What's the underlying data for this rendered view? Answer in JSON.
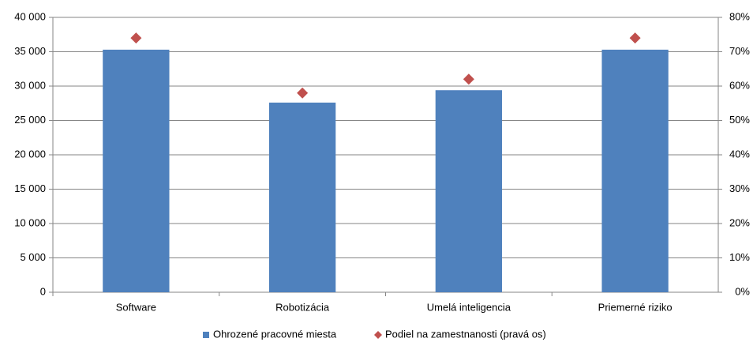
{
  "chart_data": {
    "type": "bar",
    "categories": [
      "Software",
      "Robotizácia",
      "Umelá inteligencia",
      "Priemerné riziko"
    ],
    "series": [
      {
        "name": "Ohrozené pracovné miesta",
        "type": "bar",
        "color": "#4f81bd",
        "values": [
          35300,
          27600,
          29400,
          35300
        ]
      },
      {
        "name": "Podiel na zamestnanosti (pravá os)",
        "type": "scatter",
        "axis": "y2",
        "color": "#c0504d",
        "values": [
          74,
          58,
          62,
          74
        ]
      }
    ],
    "ylim": [
      0,
      40000
    ],
    "yticks": [
      {
        "value": 0,
        "label": "0"
      },
      {
        "value": 5000,
        "label": "5 000"
      },
      {
        "value": 10000,
        "label": "10 000"
      },
      {
        "value": 15000,
        "label": "15 000"
      },
      {
        "value": 20000,
        "label": "20 000"
      },
      {
        "value": 25000,
        "label": "25 000"
      },
      {
        "value": 30000,
        "label": "30 000"
      },
      {
        "value": 35000,
        "label": "35 000"
      },
      {
        "value": 40000,
        "label": "40 000"
      }
    ],
    "y2lim": [
      0,
      80
    ],
    "y2ticks": [
      {
        "value": 0,
        "label": "0%"
      },
      {
        "value": 10,
        "label": "10%"
      },
      {
        "value": 20,
        "label": "20%"
      },
      {
        "value": 30,
        "label": "30%"
      },
      {
        "value": 40,
        "label": "40%"
      },
      {
        "value": 50,
        "label": "50%"
      },
      {
        "value": 60,
        "label": "60%"
      },
      {
        "value": 70,
        "label": "70%"
      },
      {
        "value": 80,
        "label": "80%"
      }
    ],
    "grid": true,
    "legend": "bottom"
  }
}
